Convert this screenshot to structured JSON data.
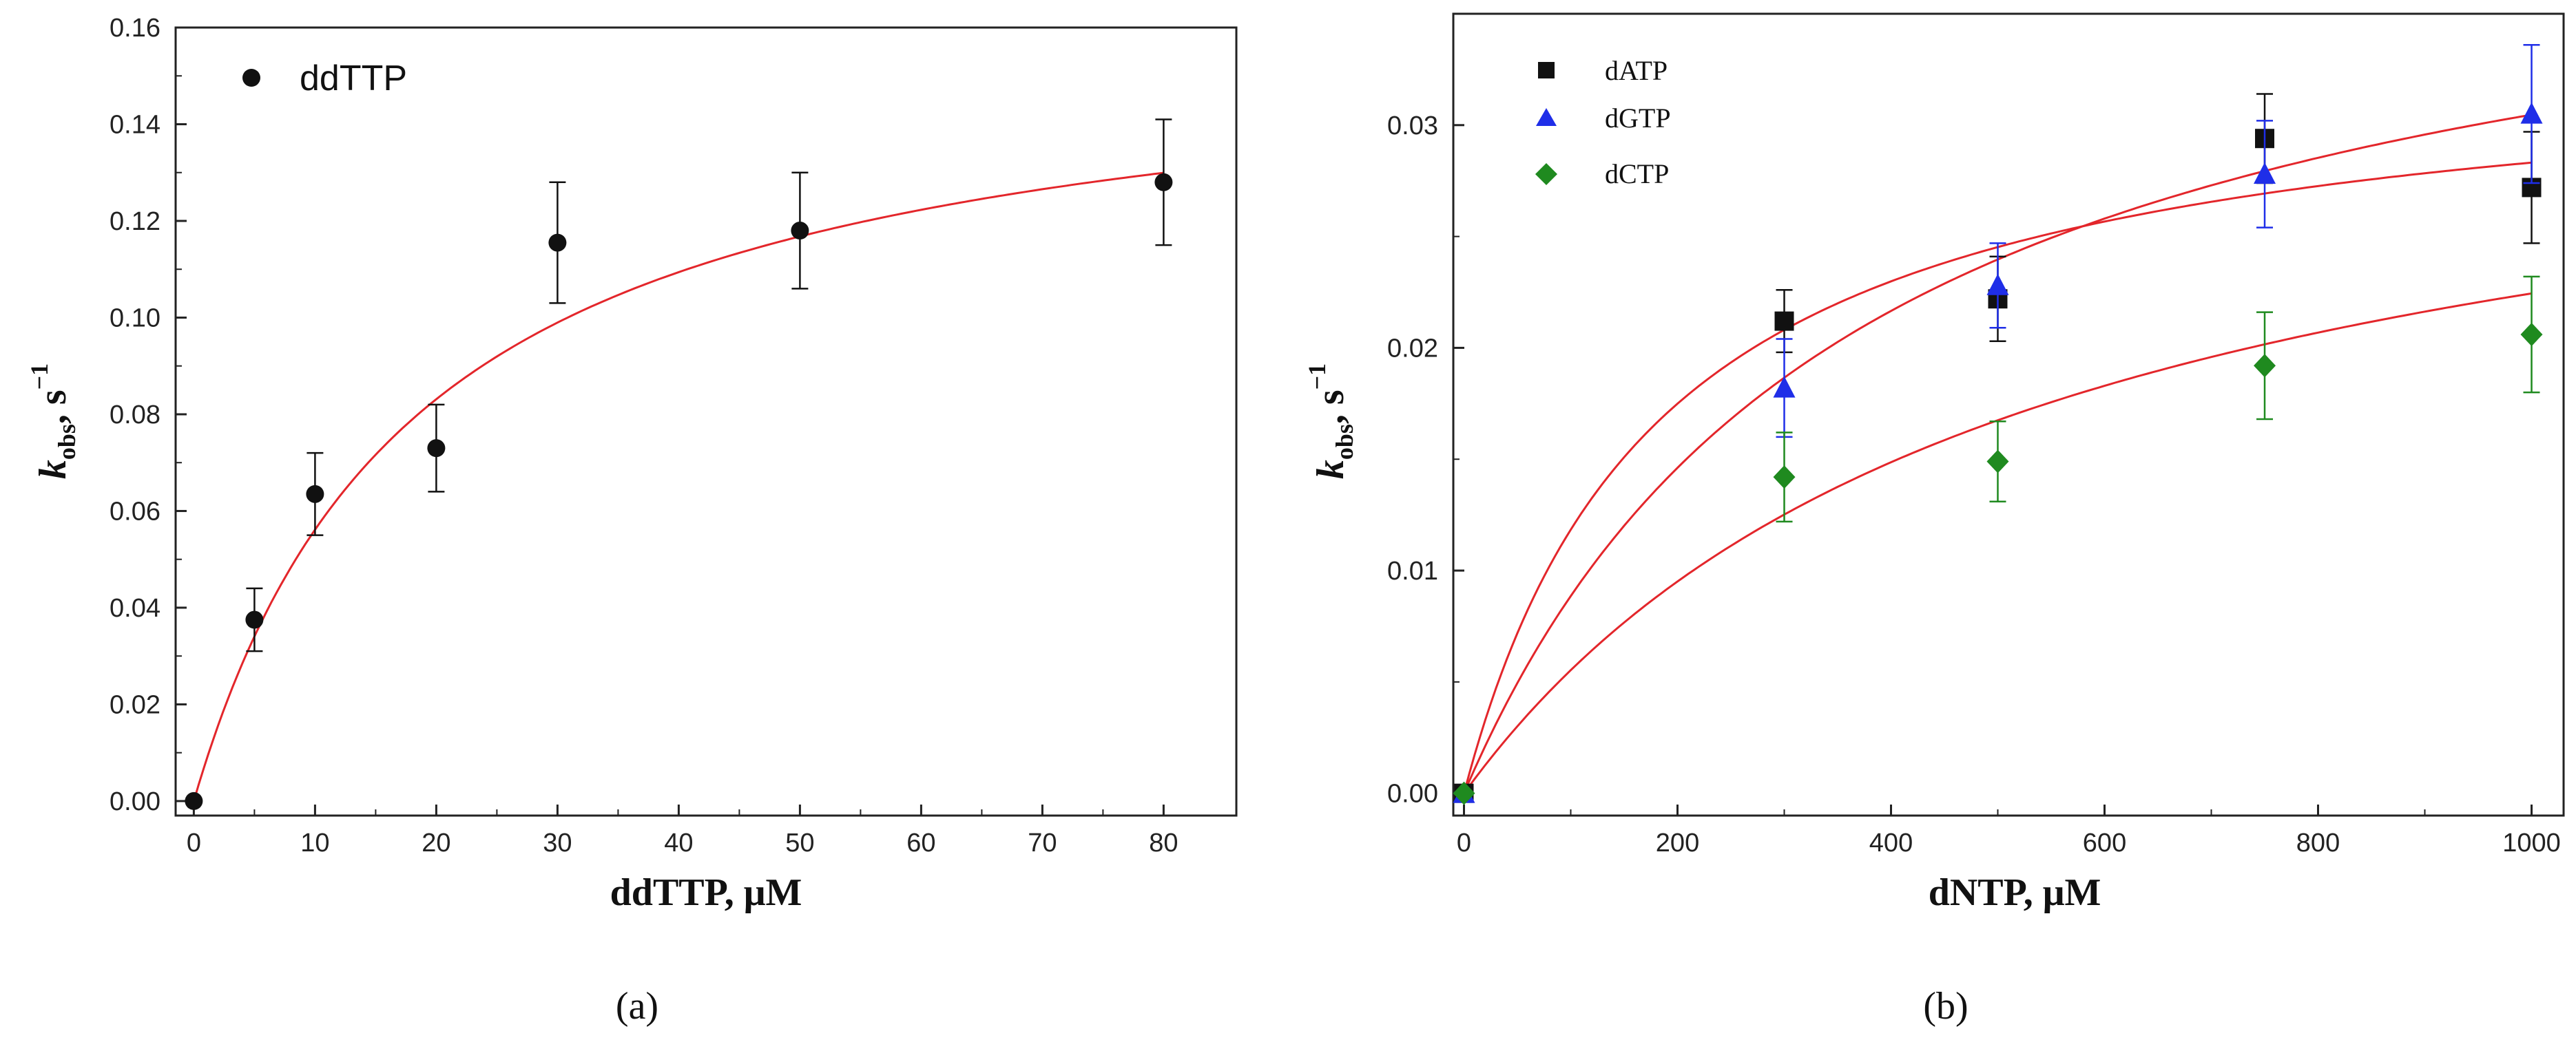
{
  "chart_data": [
    {
      "type": "scatter",
      "panel": "a",
      "panel_label": "(a)",
      "xlabel": "ddTTP, μM",
      "ylabel_main": "k",
      "ylabel_sub": "obs",
      "ylabel_unit": ", s",
      "ylabel_sup": "−1",
      "xlim": [
        -1.5,
        86
      ],
      "ylim": [
        -0.003,
        0.16
      ],
      "xticks": [
        0,
        10,
        20,
        30,
        40,
        50,
        60,
        70,
        80
      ],
      "xtick_labels": [
        "0",
        "10",
        "20",
        "30",
        "40",
        "50",
        "60",
        "70",
        "80"
      ],
      "yticks": [
        0.0,
        0.02,
        0.04,
        0.06,
        0.08,
        0.1,
        0.12,
        0.14,
        0.16
      ],
      "ytick_labels": [
        "0.00",
        "0.02",
        "0.04",
        "0.06",
        "0.08",
        "0.10",
        "0.12",
        "0.14",
        "0.16"
      ],
      "legend_position": "top-left",
      "series": [
        {
          "name": "ddTTP",
          "marker": "circle",
          "color": "#111111",
          "x": [
            0,
            5,
            10,
            20,
            30,
            50,
            80
          ],
          "y": [
            0.0,
            0.0375,
            0.0635,
            0.073,
            0.1155,
            0.118,
            0.128
          ],
          "err": [
            0.0,
            0.0065,
            0.0085,
            0.009,
            0.0125,
            0.012,
            0.013
          ]
        }
      ],
      "fits": [
        {
          "name": "ddTTP fit",
          "color": "#e3262b",
          "vmax": 0.16,
          "km": 18.5
        }
      ]
    },
    {
      "type": "scatter",
      "panel": "b",
      "panel_label": "(b)",
      "xlabel": "dNTP, μM",
      "ylabel_main": "k",
      "ylabel_sub": "obs",
      "ylabel_unit": ", s",
      "ylabel_sup": "−1",
      "xlim": [
        -10,
        1030
      ],
      "ylim": [
        -0.001,
        0.035
      ],
      "xticks": [
        0,
        200,
        400,
        600,
        800,
        1000
      ],
      "xtick_labels": [
        "0",
        "200",
        "400",
        "600",
        "800",
        "1000"
      ],
      "yticks": [
        0.0,
        0.01,
        0.02,
        0.03
      ],
      "ytick_labels": [
        "0.00",
        "0.01",
        "0.02",
        "0.03"
      ],
      "legend_position": "top-left",
      "series": [
        {
          "name": "dATP",
          "marker": "square",
          "color": "#111111",
          "x": [
            0,
            300,
            500,
            750,
            1000
          ],
          "y": [
            0.0,
            0.0212,
            0.0222,
            0.0294,
            0.0272
          ],
          "err": [
            0.0,
            0.0014,
            0.0019,
            0.002,
            0.0025
          ]
        },
        {
          "name": "dGTP",
          "marker": "triangle",
          "color": "#1f2ee8",
          "x": [
            0,
            300,
            500,
            750,
            1000
          ],
          "y": [
            0.0,
            0.0182,
            0.0228,
            0.0278,
            0.0305
          ],
          "err": [
            0.0,
            0.0022,
            0.0019,
            0.0024,
            0.0031
          ]
        },
        {
          "name": "dCTP",
          "marker": "diamond",
          "color": "#1f8a1f",
          "x": [
            0,
            300,
            500,
            750,
            1000
          ],
          "y": [
            0.0,
            0.0142,
            0.0149,
            0.0192,
            0.0206
          ],
          "err": [
            0.0,
            0.002,
            0.0018,
            0.0024,
            0.0026
          ]
        }
      ],
      "fits": [
        {
          "name": "dATP fit",
          "color": "#e3262b",
          "vmax": 0.0335,
          "km": 183
        },
        {
          "name": "dGTP fit",
          "color": "#e3262b",
          "vmax": 0.0418,
          "km": 372
        },
        {
          "name": "dCTP fit",
          "color": "#e3262b",
          "vmax": 0.034,
          "km": 515
        }
      ]
    }
  ]
}
